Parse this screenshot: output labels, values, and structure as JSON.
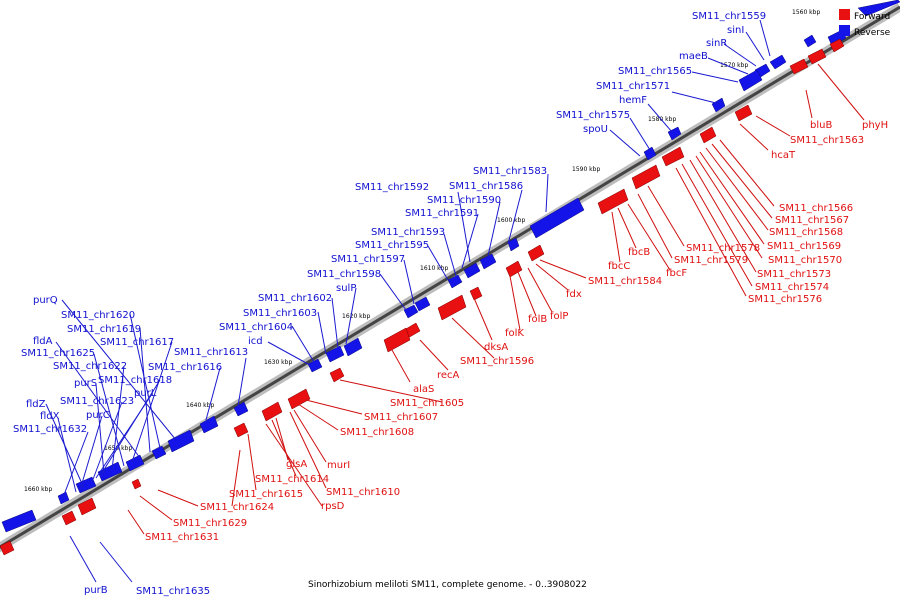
{
  "caption": "Sinorhizobium meliloti SM11, complete genome. - 0..3908022",
  "legend": {
    "forward_label": "Forward",
    "reverse_label": "Reverse",
    "forward_color": "#e81010",
    "reverse_color": "#1414e8"
  },
  "ticks": [
    "1560 kbp",
    "1570 kbp",
    "1580 kbp",
    "1590 kbp",
    "1600 kbp",
    "1610 kbp",
    "1620 kbp",
    "1630 kbp",
    "1640 kbp",
    "1650 kbp",
    "1660 kbp"
  ],
  "reverse_genes": [
    "SM11_chr1559",
    "sinI",
    "sinR",
    "maeB",
    "SM11_chr1565",
    "SM11_chr1571",
    "hemF",
    "SM11_chr1575",
    "spoU",
    "SM11_chr1583",
    "SM11_chr1586",
    "SM11_chr1590",
    "SM11_chr1592",
    "SM11_chr1591",
    "SM11_chr1593",
    "SM11_chr1595",
    "SM11_chr1597",
    "SM11_chr1598",
    "sulP",
    "SM11_chr1602",
    "SM11_chr1603",
    "SM11_chr1604",
    "icd",
    "SM11_chr1613",
    "SM11_chr1616",
    "purQ",
    "SM11_chr1620",
    "SM11_chr1619",
    "fldA",
    "SM11_chr1617",
    "SM11_chr1625",
    "SM11_chr1622",
    "purS",
    "SM11_chr1618",
    "purL",
    "SM11_chr1623",
    "fldZ",
    "purC",
    "fldX",
    "SM11_chr1632",
    "purB",
    "SM11_chr1635"
  ],
  "forward_genes": [
    "phyH",
    "bluB",
    "SM11_chr1563",
    "hcaT",
    "SM11_chr1566",
    "SM11_chr1567",
    "SM11_chr1568",
    "SM11_chr1569",
    "SM11_chr1570",
    "SM11_chr1573",
    "SM11_chr1574",
    "SM11_chr1576",
    "SM11_chr1578",
    "SM11_chr1579",
    "fbcB",
    "fbcC",
    "fbcF",
    "SM11_chr1584",
    "fdx",
    "folP",
    "folB",
    "folK",
    "dksA",
    "SM11_chr1596",
    "recA",
    "alaS",
    "SM11_chr1605",
    "SM11_chr1607",
    "SM11_chr1608",
    "glsA",
    "murI",
    "SM11_chr1614",
    "SM11_chr1610",
    "SM11_chr1615",
    "rpsD",
    "SM11_chr1624",
    "SM11_chr1629",
    "SM11_chr1631"
  ]
}
